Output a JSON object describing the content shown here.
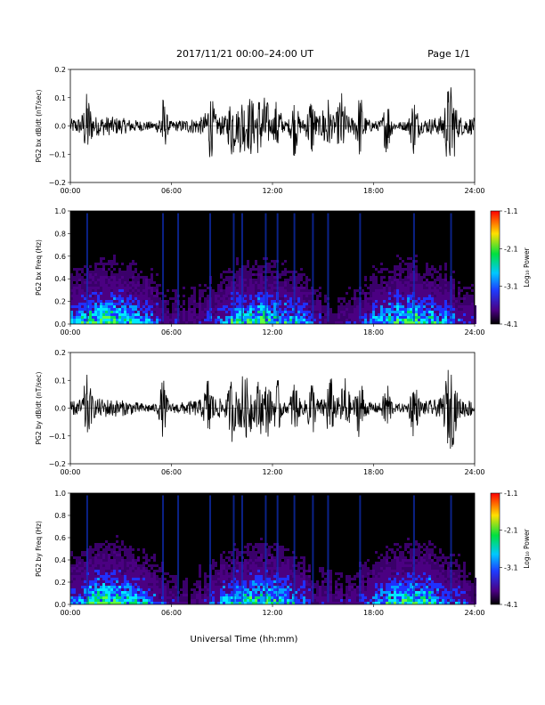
{
  "header": {
    "date_range": "2017/11/21   00:00–24:00 UT",
    "page": "Page 1/1"
  },
  "xaxis_title": "Universal Time (hh:mm)",
  "chart_data": [
    {
      "type": "line",
      "panel_name": "bx-waveform",
      "ylabel": "PG2 bx dB/dt (nT/sec)",
      "xlim": [
        0,
        24
      ],
      "ylim": [
        -0.2,
        0.2
      ],
      "x_ticks": [
        "00:00",
        "06:00",
        "12:00",
        "18:00",
        "24:00"
      ],
      "y_ticks": [
        "0.2",
        "0.1",
        "0.0",
        "−0.1",
        "−0.2"
      ],
      "burst_hours": [
        1.0,
        5.5,
        8.3,
        9.6,
        10.2,
        10.7,
        11.2,
        11.6,
        12.3,
        13.3,
        14.3,
        15.2,
        16.1,
        17.2,
        18.8,
        20.4,
        22.4,
        22.7
      ]
    },
    {
      "type": "heatmap",
      "panel_name": "bx-spectrogram",
      "ylabel": "PG2 bx Freq (Hz)",
      "xlim": [
        0,
        24
      ],
      "ylim": [
        0.0,
        1.0
      ],
      "x_ticks": [
        "00:00",
        "06:00",
        "12:00",
        "18:00",
        "24:00"
      ],
      "y_ticks": [
        "1.0",
        "0.8",
        "0.6",
        "0.4",
        "0.2",
        "0.0"
      ],
      "colorbar": {
        "label": "Log₁₀ Power",
        "min": -4.1,
        "max": -1.1,
        "ticks": [
          "-1.1",
          "-2.1",
          "-3.1",
          "-4.1"
        ]
      }
    },
    {
      "type": "line",
      "panel_name": "by-waveform",
      "ylabel": "PG2 by dB/dt (nT/sec)",
      "xlim": [
        0,
        24
      ],
      "ylim": [
        -0.2,
        0.2
      ],
      "x_ticks": [
        "00:00",
        "06:00",
        "12:00",
        "18:00",
        "24:00"
      ],
      "y_ticks": [
        "0.2",
        "0.1",
        "0.0",
        "−0.1",
        "−0.2"
      ],
      "burst_hours": [
        1.0,
        5.5,
        8.2,
        9.6,
        10.2,
        10.6,
        11.2,
        11.7,
        12.3,
        13.3,
        14.3,
        15.4,
        16.3,
        17.2,
        18.8,
        20.4,
        22.4,
        22.7
      ]
    },
    {
      "type": "heatmap",
      "panel_name": "by-spectrogram",
      "ylabel": "PG2 by Freq (Hz)",
      "xlim": [
        0,
        24
      ],
      "ylim": [
        0.0,
        1.0
      ],
      "x_ticks": [
        "00:00",
        "06:00",
        "12:00",
        "18:00",
        "24:00"
      ],
      "y_ticks": [
        "1.0",
        "0.8",
        "0.6",
        "0.4",
        "0.2",
        "0.0"
      ],
      "colorbar": {
        "label": "Log₁₀ Power",
        "min": -4.1,
        "max": -1.1,
        "ticks": [
          "-1.1",
          "-2.1",
          "-3.1",
          "-4.1"
        ]
      }
    }
  ]
}
